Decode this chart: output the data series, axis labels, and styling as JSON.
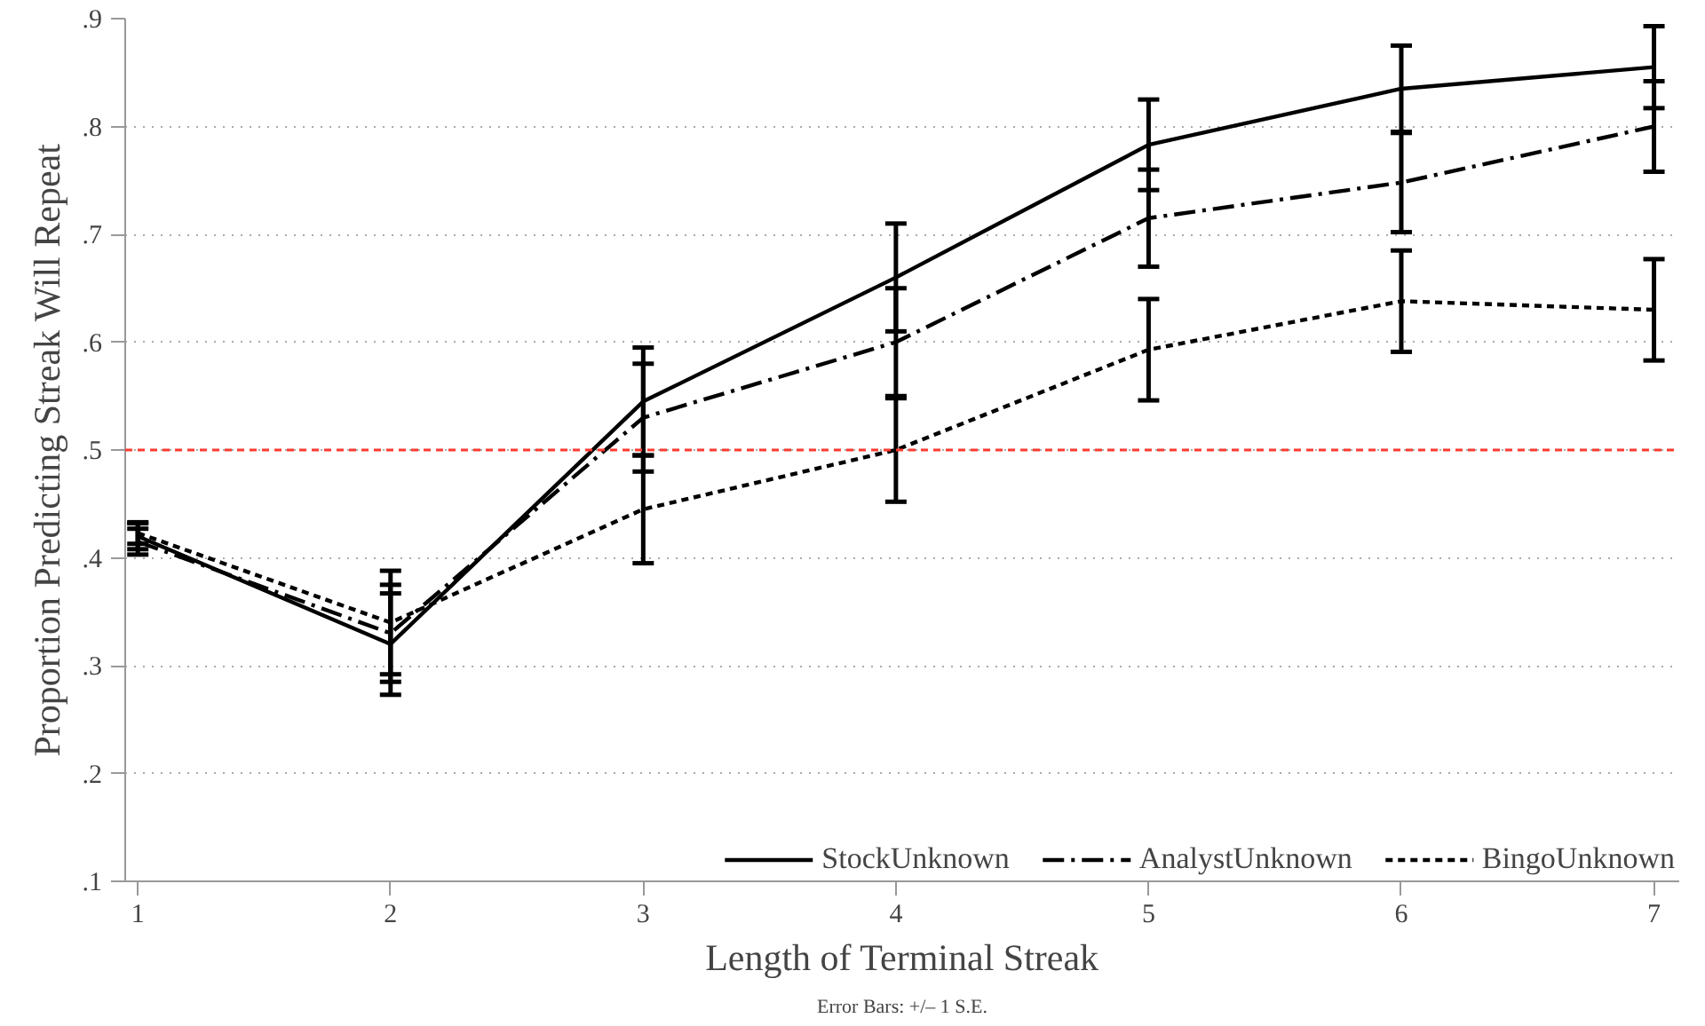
{
  "chart_data": {
    "type": "line",
    "x": [
      1,
      2,
      3,
      4,
      5,
      6,
      7
    ],
    "xlabel": "Length of Terminal Streak",
    "ylabel": "Proportion Predicting Streak Will Repeat",
    "xlim": [
      0.95,
      7.1
    ],
    "ylim": [
      0.1,
      0.9
    ],
    "xticks": [
      1,
      2,
      3,
      4,
      5,
      6,
      7
    ],
    "yticks": [
      {
        "value": 0.1,
        "label": ".1"
      },
      {
        "value": 0.2,
        "label": ".2"
      },
      {
        "value": 0.3,
        "label": ".3"
      },
      {
        "value": 0.4,
        "label": ".4"
      },
      {
        "value": 0.5,
        "label": ".5"
      },
      {
        "value": 0.6,
        "label": ".6"
      },
      {
        "value": 0.7,
        "label": ".7"
      },
      {
        "value": 0.8,
        "label": ".8"
      },
      {
        "value": 0.9,
        "label": ".9"
      }
    ],
    "grid": "y",
    "legend": "bottom right",
    "marker": "none",
    "series": [
      {
        "name": "StockUnknown",
        "color": "#000000",
        "line_style": "solid",
        "values": [
          0.42,
          0.32,
          0.545,
          0.66,
          0.783,
          0.835,
          0.855
        ],
        "errors": [
          0.012,
          0.047,
          0.05,
          0.05,
          0.042,
          0.04,
          0.038
        ]
      },
      {
        "name": "AnalystUnknown",
        "color": "#000000",
        "line_style": "dashdot",
        "values": [
          0.415,
          0.33,
          0.53,
          0.6,
          0.715,
          0.748,
          0.8
        ],
        "errors": [
          0.012,
          0.045,
          0.05,
          0.05,
          0.045,
          0.046,
          0.042
        ]
      },
      {
        "name": "BingoUnknown",
        "color": "#000000",
        "line_style": "dashed",
        "values": [
          0.423,
          0.34,
          0.445,
          0.5,
          0.593,
          0.638,
          0.63
        ],
        "errors": [
          0.01,
          0.048,
          0.05,
          0.048,
          0.047,
          0.047,
          0.047
        ]
      }
    ],
    "ref_lines": [
      {
        "axis": "y",
        "value": 0.5,
        "color": "#ff3b30",
        "line_style": "dashed"
      }
    ],
    "annotations": [
      "Error Bars: +/– 1 S.E."
    ]
  }
}
